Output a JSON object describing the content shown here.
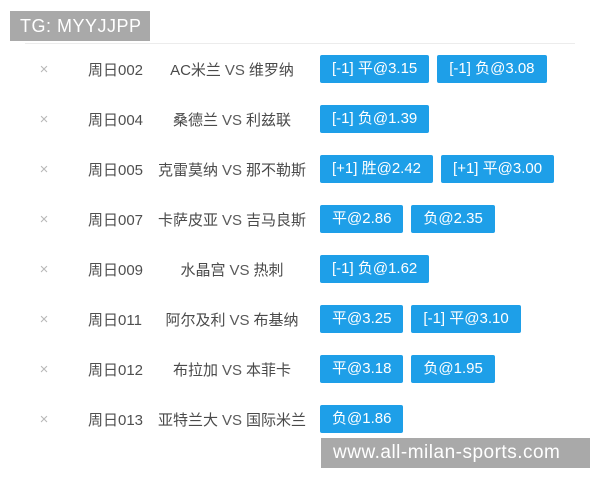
{
  "header": {
    "title": "TG: MYYJJPP"
  },
  "labels": {
    "vs": "VS",
    "close_icon": "×"
  },
  "colors": {
    "accent_blue": "#1E9FE8",
    "banner_gray": "#A9A9A9"
  },
  "watermark": {
    "url_text": "www.all-milan-sports.com"
  },
  "matches": [
    {
      "id": "周日002",
      "home": "AC米兰",
      "away": "维罗纳",
      "odds": [
        "[-1] 平@3.15",
        "[-1] 负@3.08"
      ]
    },
    {
      "id": "周日004",
      "home": "桑德兰",
      "away": "利兹联",
      "odds": [
        "[-1] 负@1.39"
      ]
    },
    {
      "id": "周日005",
      "home": "克雷莫纳",
      "away": "那不勒斯",
      "odds": [
        "[+1] 胜@2.42",
        "[+1] 平@3.00"
      ]
    },
    {
      "id": "周日007",
      "home": "卡萨皮亚",
      "away": "吉马良斯",
      "odds": [
        "平@2.86",
        "负@2.35"
      ]
    },
    {
      "id": "周日009",
      "home": "水晶宫",
      "away": "热刺",
      "odds": [
        "[-1] 负@1.62"
      ]
    },
    {
      "id": "周日011",
      "home": "阿尔及利",
      "away": "布基纳",
      "odds": [
        "平@3.25",
        "[-1] 平@3.10"
      ]
    },
    {
      "id": "周日012",
      "home": "布拉加",
      "away": "本菲卡",
      "odds": [
        "平@3.18",
        "负@1.95"
      ]
    },
    {
      "id": "周日013",
      "home": "亚特兰大",
      "away": "国际米兰",
      "odds": [
        "负@1.86"
      ]
    }
  ]
}
